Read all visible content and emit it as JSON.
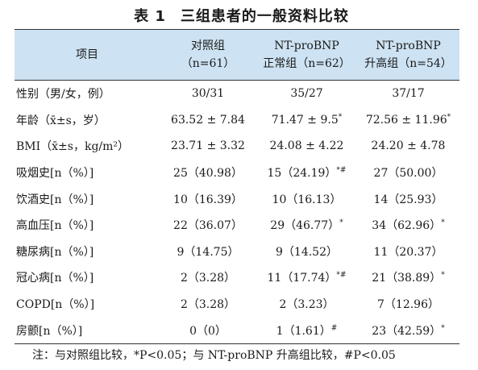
{
  "title": {
    "number": "表 1",
    "text": "三组患者的一般资料比较"
  },
  "header": {
    "item": "项目",
    "group1": {
      "line1": "对照组",
      "line2": "（n=61）"
    },
    "group2": {
      "line1": "NT-proBNP",
      "line2": "正常组（n=62）"
    },
    "group3": {
      "line1": "NT-proBNP",
      "line2": "升高组（n=54）"
    }
  },
  "rows": [
    {
      "label": "性别（男/女，例）",
      "v1": "30/31",
      "v2": "35/27",
      "v3": "37/17",
      "m1": "",
      "m2": "",
      "m3": ""
    },
    {
      "label": "年龄（x̄±s，岁）",
      "v1": "63.52 ± 7.84",
      "v2": "71.47 ± 9.5",
      "v3": "72.56 ± 11.96",
      "m1": "",
      "m2": "*",
      "m3": "*"
    },
    {
      "label": "BMI（x̄±s，kg/m²）",
      "v1": "23.71 ± 3.32",
      "v2": "24.08 ± 4.22",
      "v3": "24.20 ± 4.78",
      "m1": "",
      "m2": "",
      "m3": ""
    },
    {
      "label": "吸烟史[n（%）]",
      "v1": "25（40.98）",
      "v2": "15（24.19）",
      "v3": "27（50.00）",
      "m1": "",
      "m2": "*#",
      "m3": ""
    },
    {
      "label": "饮酒史[n（%）]",
      "v1": "10（16.39）",
      "v2": "10（16.13）",
      "v3": "14（25.93）",
      "m1": "",
      "m2": "",
      "m3": ""
    },
    {
      "label": "高血压[n（%）]",
      "v1": "22（36.07）",
      "v2": "29（46.77）",
      "v3": "34（62.96）",
      "m1": "",
      "m2": "*",
      "m3": "*"
    },
    {
      "label": "糖尿病[n（%）]",
      "v1": "9（14.75）",
      "v2": "9（14.52）",
      "v3": "11（20.37）",
      "m1": "",
      "m2": "",
      "m3": ""
    },
    {
      "label": "冠心病[n（%）]",
      "v1": "2（3.28）",
      "v2": "11（17.74）",
      "v3": "21（38.89）",
      "m1": "",
      "m2": "*#",
      "m3": "*"
    },
    {
      "label": "COPD[n（%）]",
      "v1": "2（3.28）",
      "v2": "2（3.23）",
      "v3": "7（12.96）",
      "m1": "",
      "m2": "",
      "m3": ""
    },
    {
      "label": "房颤[n（%）]",
      "v1": "0（0）",
      "v2": "1（1.61）",
      "v3": "23（42.59）",
      "m1": "",
      "m2": "#",
      "m3": "*"
    }
  ],
  "note": "注：与对照组比较，*P<0.05；与 NT-proBNP 升高组比较，#P<0.05"
}
